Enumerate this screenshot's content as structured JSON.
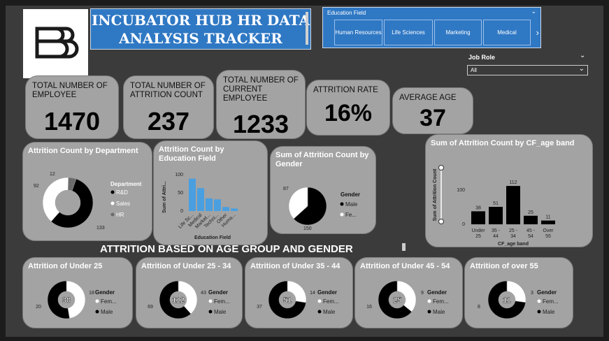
{
  "header": {
    "title": "INCUBATOR HUB HR DATA ANALYSIS TRACKER"
  },
  "education_slicer": {
    "label": "Education Field",
    "options": [
      "Human Resources",
      "Life Sciences",
      "Marketing",
      "Medical"
    ]
  },
  "job_role": {
    "label": "Job Role",
    "value": "All"
  },
  "kpis": {
    "total_employee": {
      "label": "TOTAL NUMBER OF EMPLOYEE",
      "value": "1470"
    },
    "attrition_count": {
      "label": "TOTAL NUMBER OF ATTRITION COUNT",
      "value": "237"
    },
    "current_employee": {
      "label": "TOTAL NUMBER OF CURRENT EMPLOYEE",
      "value": "1233"
    },
    "attrition_rate": {
      "label": "ATTRITION RATE",
      "value": "16%"
    },
    "average_age": {
      "label": "AVERAGE AGE",
      "value": "37"
    }
  },
  "section_title": "ATTRITION BASED ON AGE GROUP AND GENDER",
  "colors": {
    "dark": "#000000",
    "light": "#ffffff",
    "bar_blue": "#4a9fe0",
    "card": "#a3a3a3"
  },
  "chart_data": [
    {
      "id": "dept",
      "type": "pie",
      "title": "Attrition Count by Department",
      "legend_title": "Department",
      "categories": [
        "R&D",
        "Sales",
        "HR"
      ],
      "values": [
        133,
        92,
        12
      ],
      "colors": [
        "#000000",
        "#ffffff",
        "#6b6b6b"
      ]
    },
    {
      "id": "edu",
      "type": "bar",
      "title": "Attrition Count by Education Field",
      "xlabel": "Education Field",
      "ylabel": "Sum of Attri...",
      "tick_labels": [
        "Life Sc...",
        "Medical",
        "Market...",
        "Techni...",
        "Other",
        "Huma..."
      ],
      "values": [
        89,
        63,
        35,
        32,
        11,
        7
      ],
      "ylim": [
        0,
        100
      ],
      "yticks": [
        "0",
        "50",
        "100"
      ]
    },
    {
      "id": "gender",
      "type": "pie",
      "title": "Sum of Attrition Count by Gender",
      "legend_title": "Gender",
      "categories": [
        "Male",
        "Fe..."
      ],
      "values": [
        150,
        87
      ],
      "colors": [
        "#000000",
        "#ffffff"
      ]
    },
    {
      "id": "ageband",
      "type": "bar",
      "title": "Sum of Attrition Count by CF_age band",
      "xlabel": "CF_age band",
      "ylabel": "Sum of Attrition Count",
      "categories": [
        "Under 25",
        "35 - 44",
        "25 - 34",
        "45 - 54",
        "Over 55"
      ],
      "values": [
        38,
        51,
        112,
        25,
        11
      ],
      "ylim": [
        0,
        120
      ],
      "yticks": [
        "0",
        "100"
      ]
    },
    {
      "id": "u25",
      "type": "pie",
      "title": "Attrition of Under 25",
      "center": "38",
      "legend_title": "Gender",
      "categories": [
        "Fem...",
        "Male"
      ],
      "values": [
        18,
        20
      ],
      "colors": [
        "#ffffff",
        "#000000"
      ]
    },
    {
      "id": "u2534",
      "type": "pie",
      "title": "Attrition of Under 25 - 34",
      "center": "112",
      "legend_title": "Gender",
      "categories": [
        "Fem...",
        "Male"
      ],
      "values": [
        43,
        69
      ],
      "colors": [
        "#ffffff",
        "#000000"
      ]
    },
    {
      "id": "u3544",
      "type": "pie",
      "title": "Attrition of Under 35 - 44",
      "center": "51",
      "legend_title": "Gender",
      "categories": [
        "Fem...",
        "Male"
      ],
      "values": [
        14,
        37
      ],
      "colors": [
        "#ffffff",
        "#000000"
      ]
    },
    {
      "id": "u4554",
      "type": "pie",
      "title": "Attrition of Under 45 - 54",
      "center": "25",
      "legend_title": "Gender",
      "categories": [
        "Fem...",
        "Male"
      ],
      "values": [
        9,
        16
      ],
      "colors": [
        "#ffffff",
        "#000000"
      ]
    },
    {
      "id": "o55",
      "type": "pie",
      "title": "Attrition of over 55",
      "center": "11",
      "legend_title": "Gender",
      "categories": [
        "Fem...",
        "Male"
      ],
      "values": [
        3,
        8
      ],
      "colors": [
        "#ffffff",
        "#000000"
      ]
    }
  ]
}
